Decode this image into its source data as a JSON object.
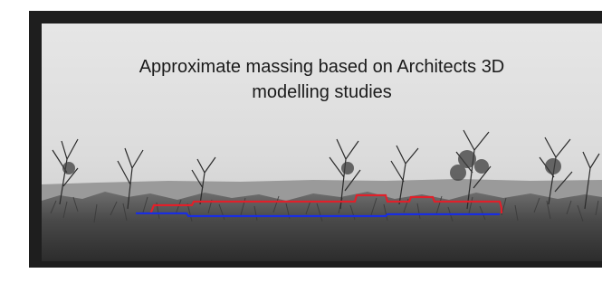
{
  "caption": {
    "line1": "Approximate massing based on Architects 3D",
    "line2": "modelling studies"
  },
  "overlay": {
    "proposed_massing_color": "#e0202a",
    "existing_line_color": "#1a2ee0"
  }
}
